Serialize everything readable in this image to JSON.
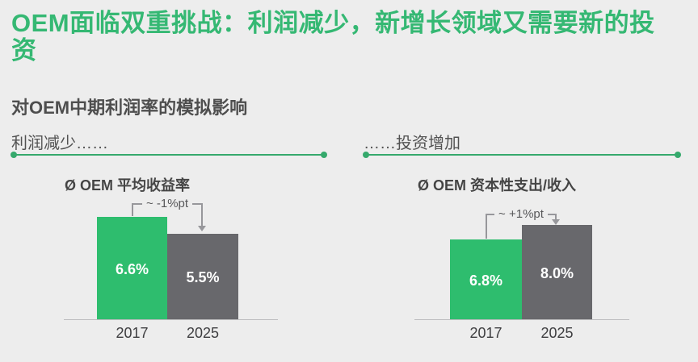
{
  "slide": {
    "title_full": "OEM面临双重挑战：利润减少，新增长领域又需要新的投资",
    "title_lines": [
      "OEM面临双重挑战：利润减少，新增长领域又需要新的投",
      "资"
    ],
    "subtitle": "对OEM中期利润率的模拟影响",
    "panels": [
      {
        "header": "利润减少……"
      },
      {
        "header": "……投资增加"
      }
    ]
  },
  "chart_data": [
    {
      "type": "bar",
      "title": "Ø OEM 平均收益率",
      "categories": [
        "2017",
        "2025"
      ],
      "values": [
        6.6,
        5.5
      ],
      "display_values": [
        "6.6%",
        "5.5%"
      ],
      "unit": "%",
      "annotation": "~ -1%pt",
      "bar_colors": [
        "green",
        "gray"
      ],
      "ylim": [
        0,
        7
      ],
      "grid": false,
      "legend": "none"
    },
    {
      "type": "bar",
      "title": "Ø OEM 资本性支出/收入",
      "categories": [
        "2017",
        "2025"
      ],
      "values": [
        6.8,
        8.0
      ],
      "display_values": [
        "6.8%",
        "8.0%"
      ],
      "unit": "%",
      "annotation": "~ +1%pt",
      "bar_colors": [
        "green",
        "gray"
      ],
      "ylim": [
        0,
        9
      ],
      "grid": false,
      "legend": "none"
    }
  ],
  "colors": {
    "title_green": "#35b873",
    "bar_green": "#2ebd6e",
    "bar_gray": "#68686c",
    "rule_green": "#35a96c",
    "annotation_gray": "#97979b",
    "background": "#ededed"
  }
}
